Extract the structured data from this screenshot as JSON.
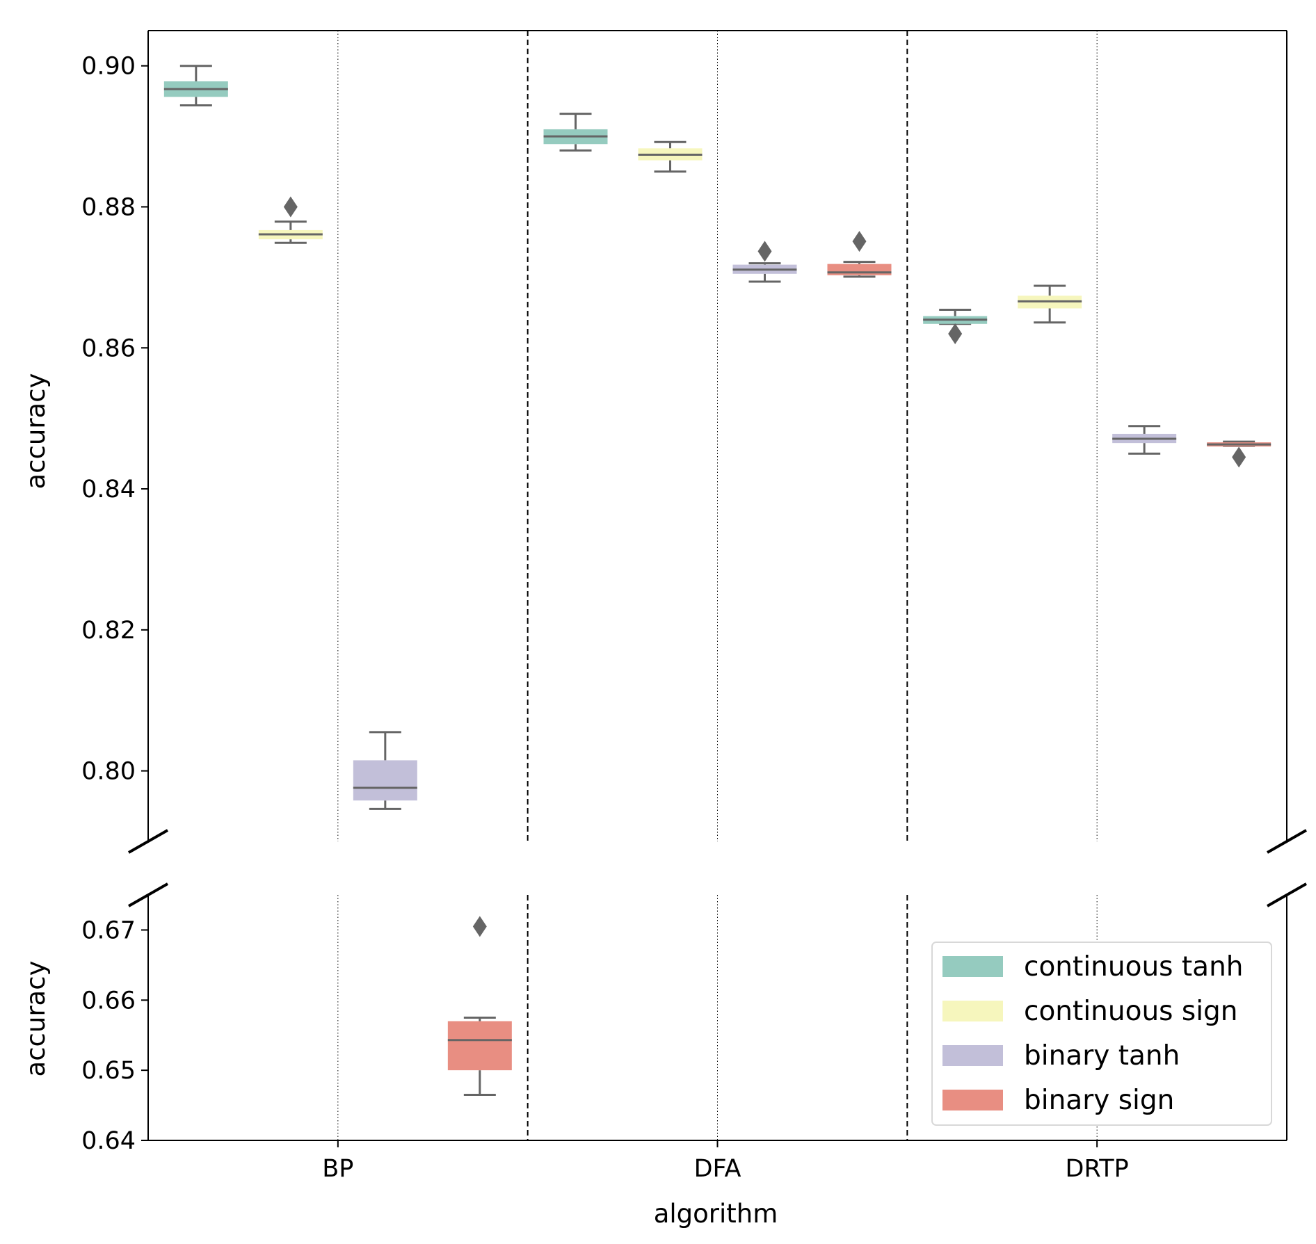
{
  "chart_data": {
    "type": "box",
    "title": "",
    "xlabel": "algorithm",
    "ylabel": "accuracy",
    "categories": [
      "BP",
      "DFA",
      "DRTP"
    ],
    "broken_axis": true,
    "panels": [
      {
        "ylim": [
          0.79,
          0.905
        ],
        "yticks": [
          "0.80",
          "0.82",
          "0.84",
          "0.86",
          "0.88",
          "0.90"
        ]
      },
      {
        "ylim": [
          0.64,
          0.675
        ],
        "yticks": [
          "0.64",
          "0.65",
          "0.66",
          "0.67"
        ]
      }
    ],
    "grid": false,
    "legend_position": "lower-right",
    "series": [
      {
        "name": "continuous tanh",
        "color": "#95cbbf",
        "boxes": [
          {
            "category": "BP",
            "whisker_low": 0.8944,
            "q1": 0.8956,
            "median": 0.8967,
            "q3": 0.8978,
            "whisker_high": 0.9,
            "outliers": []
          },
          {
            "category": "DFA",
            "whisker_low": 0.888,
            "q1": 0.8889,
            "median": 0.89,
            "q3": 0.891,
            "whisker_high": 0.8932,
            "outliers": []
          },
          {
            "category": "DRTP",
            "whisker_low": 0.8634,
            "q1": 0.8634,
            "median": 0.864,
            "q3": 0.8645,
            "whisker_high": 0.8654,
            "outliers": [
              0.862
            ]
          }
        ]
      },
      {
        "name": "continuous sign",
        "color": "#f6f6bd",
        "boxes": [
          {
            "category": "BP",
            "whisker_low": 0.8749,
            "q1": 0.8754,
            "median": 0.8761,
            "q3": 0.8767,
            "whisker_high": 0.8779,
            "outliers": [
              0.88
            ]
          },
          {
            "category": "DFA",
            "whisker_low": 0.885,
            "q1": 0.8866,
            "median": 0.8874,
            "q3": 0.8883,
            "whisker_high": 0.8892,
            "outliers": []
          },
          {
            "category": "DRTP",
            "whisker_low": 0.8636,
            "q1": 0.8656,
            "median": 0.8666,
            "q3": 0.8674,
            "whisker_high": 0.8688,
            "outliers": []
          }
        ]
      },
      {
        "name": "binary tanh",
        "color": "#c2bfd9",
        "boxes": [
          {
            "category": "BP",
            "whisker_low": 0.7946,
            "q1": 0.7958,
            "median": 0.7976,
            "q3": 0.8015,
            "whisker_high": 0.8055,
            "outliers": []
          },
          {
            "category": "DFA",
            "whisker_low": 0.8694,
            "q1": 0.8705,
            "median": 0.8711,
            "q3": 0.8718,
            "whisker_high": 0.872,
            "outliers": [
              0.8737
            ]
          },
          {
            "category": "DRTP",
            "whisker_low": 0.845,
            "q1": 0.8465,
            "median": 0.8471,
            "q3": 0.8478,
            "whisker_high": 0.8489,
            "outliers": []
          }
        ]
      },
      {
        "name": "binary sign",
        "color": "#e88e82",
        "boxes": [
          {
            "category": "BP",
            "whisker_low": 0.6465,
            "q1": 0.65,
            "median": 0.6543,
            "q3": 0.657,
            "whisker_high": 0.6575,
            "outliers": [
              0.6705
            ]
          },
          {
            "category": "DFA",
            "whisker_low": 0.8701,
            "q1": 0.8703,
            "median": 0.8707,
            "q3": 0.8719,
            "whisker_high": 0.8722,
            "outliers": [
              0.8751
            ]
          },
          {
            "category": "DRTP",
            "whisker_low": 0.8461,
            "q1": 0.8461,
            "median": 0.8463,
            "q3": 0.8466,
            "whisker_high": 0.8467,
            "outliers": [
              0.8445
            ]
          }
        ]
      }
    ]
  }
}
